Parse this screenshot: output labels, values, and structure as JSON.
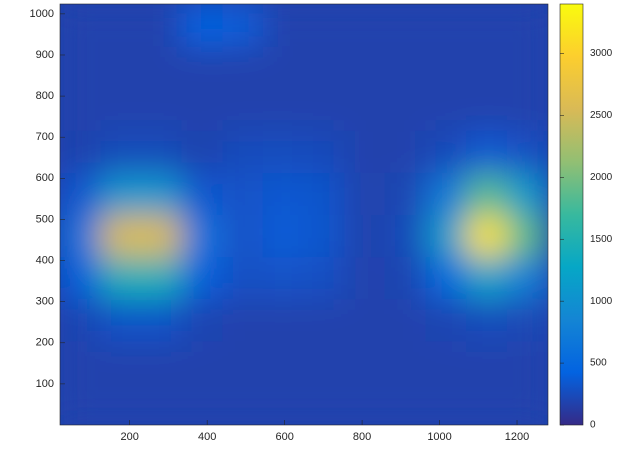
{
  "chart_data": {
    "type": "heatmap",
    "x": [
      72.5,
      177.5,
      282.5,
      387.5,
      492.5,
      597.5,
      702.5,
      807.5,
      912.5,
      1017.5,
      1122.5,
      1227.5
    ],
    "y": [
      51.2,
      153.6,
      256,
      358.4,
      460.8,
      563.2,
      665.6,
      768,
      870.4,
      972.8
    ],
    "z": [
      [
        180,
        180,
        180,
        180,
        180,
        180,
        180,
        180,
        180,
        180,
        180,
        180
      ],
      [
        180,
        180,
        180,
        180,
        180,
        180,
        180,
        180,
        180,
        180,
        180,
        180
      ],
      [
        203,
        308,
        308,
        203,
        180,
        180,
        180,
        180,
        180,
        201,
        251,
        220
      ],
      [
        403,
        1429,
        1429,
        403,
        280,
        300,
        280,
        180,
        198,
        509,
        1220,
        765
      ],
      [
        608,
        2577,
        2577,
        608,
        300,
        380,
        330,
        180,
        234,
        1126,
        3162,
        1860
      ],
      [
        339,
        1072,
        1072,
        339,
        300,
        350,
        320,
        180,
        210,
        704,
        1832,
        1111
      ],
      [
        184,
        243,
        243,
        184,
        250,
        260,
        240,
        180,
        180,
        236,
        355,
        279
      ],
      [
        180,
        180,
        180,
        180,
        180,
        180,
        180,
        180,
        180,
        180,
        180,
        180
      ],
      [
        180,
        180,
        180,
        180,
        180,
        180,
        180,
        180,
        180,
        180,
        180,
        180
      ],
      [
        180,
        180,
        180,
        420,
        380,
        180,
        180,
        180,
        180,
        180,
        180,
        180
      ]
    ],
    "xlim": [
      20,
      1280
    ],
    "ylim": [
      0,
      1024
    ],
    "xticks": [
      200,
      400,
      600,
      800,
      1000,
      1200
    ],
    "yticks": [
      100,
      200,
      300,
      400,
      500,
      600,
      700,
      800,
      900,
      1000
    ],
    "clim": [
      0,
      3400
    ],
    "cticks": [
      0,
      500,
      1000,
      1500,
      2000,
      2500,
      3000
    ],
    "colormap": [
      "#352a87",
      "#0363e1",
      "#1485d4",
      "#06a7c6",
      "#38b99e",
      "#92bf73",
      "#d9ba56",
      "#fcce2e",
      "#f9fb0e"
    ]
  }
}
